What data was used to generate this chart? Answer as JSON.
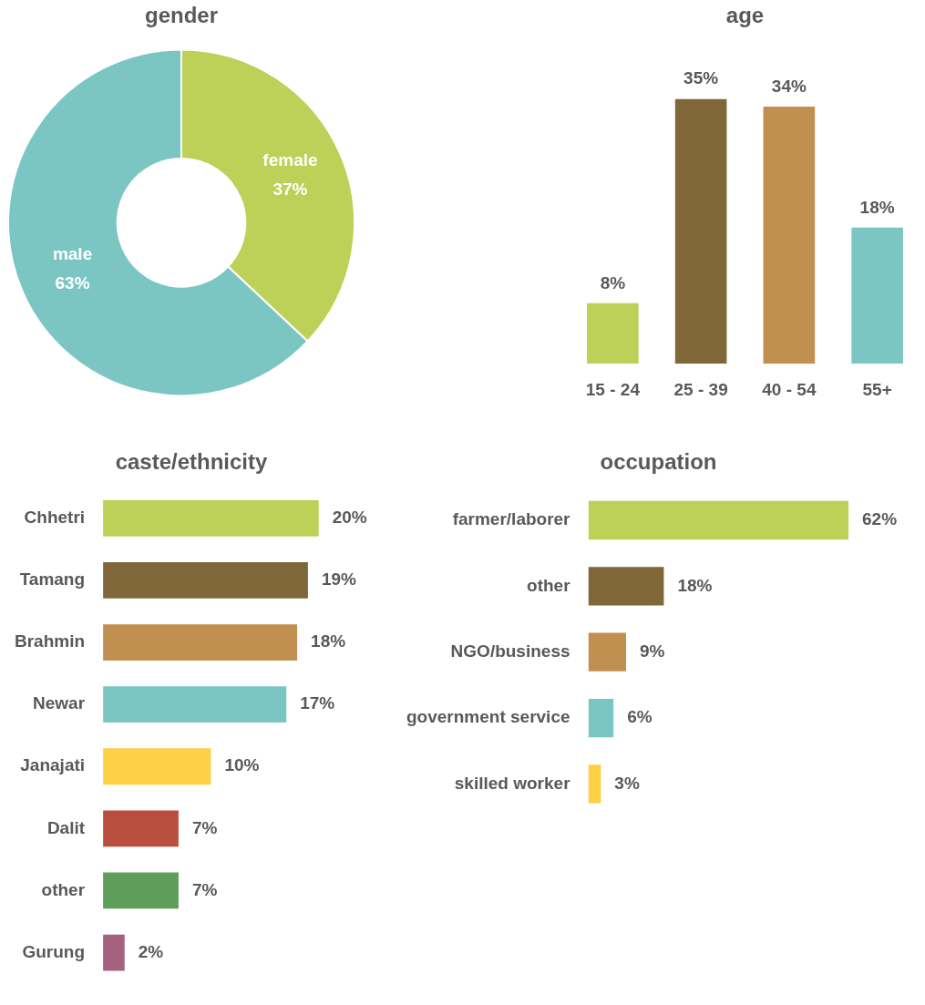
{
  "chart_data": [
    {
      "type": "donut",
      "title": "gender",
      "categories": [
        "female",
        "male"
      ],
      "values": [
        37,
        63
      ],
      "colors": [
        "#bdd057",
        "#7bc6c3"
      ],
      "value_labels": [
        "37%",
        "63%"
      ]
    },
    {
      "type": "bar",
      "title": "age",
      "categories": [
        "15 - 24",
        "25 - 39",
        "40 - 54",
        "55+"
      ],
      "values": [
        8,
        35,
        34,
        18
      ],
      "colors": [
        "#bdd057",
        "#7f6739",
        "#c18f4f",
        "#7bc6c3"
      ],
      "value_labels": [
        "8%",
        "35%",
        "34%",
        "18%"
      ]
    },
    {
      "type": "bar",
      "orientation": "horizontal",
      "title": "caste/ethnicity",
      "categories": [
        "Chhetri",
        "Tamang",
        "Brahmin",
        "Newar",
        "Janajati",
        "Dalit",
        "other",
        "Gurung"
      ],
      "values": [
        20,
        19,
        18,
        17,
        10,
        7,
        7,
        2
      ],
      "colors": [
        "#bdd057",
        "#7f6739",
        "#c18f4f",
        "#7bc6c3",
        "#fdd045",
        "#b94f3f",
        "#5f9e5a",
        "#a4627f"
      ],
      "value_labels": [
        "20%",
        "19%",
        "18%",
        "17%",
        "10%",
        "7%",
        "7%",
        "2%"
      ]
    },
    {
      "type": "bar",
      "orientation": "horizontal",
      "title": "occupation",
      "categories": [
        "farmer/laborer",
        "other",
        "NGO/business",
        "government service",
        "skilled worker"
      ],
      "values": [
        62,
        18,
        9,
        6,
        3
      ],
      "colors": [
        "#bdd057",
        "#7f6739",
        "#c18f4f",
        "#7bc6c3",
        "#fdd045"
      ],
      "value_labels": [
        "62%",
        "18%",
        "9%",
        "6%",
        "3%"
      ]
    }
  ]
}
